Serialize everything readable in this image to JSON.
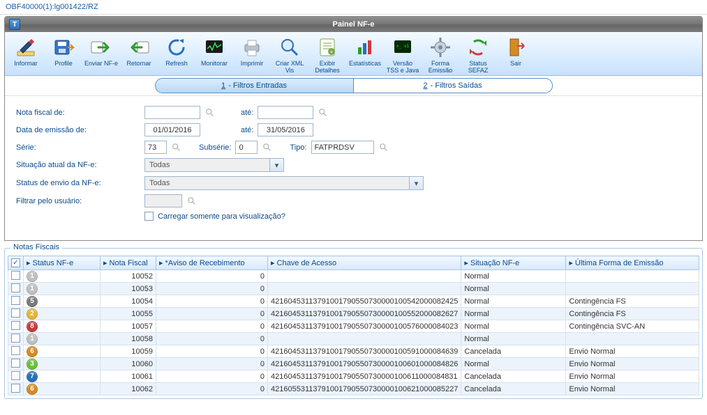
{
  "breadcrumb": "OBF40000(1):lg001422/RZ",
  "window_title": "Painel NF-e",
  "toolbar": [
    {
      "id": "informar",
      "label": "Informar",
      "svg": "pen"
    },
    {
      "id": "profile",
      "label": "Profile",
      "svg": "disk-arrow"
    },
    {
      "id": "enviar",
      "label": "Enviar NF-e",
      "svg": "arrow-right-green"
    },
    {
      "id": "retornar",
      "label": "Retornar",
      "svg": "arrow-left-green"
    },
    {
      "id": "refresh",
      "label": "Refresh",
      "svg": "refresh-blue"
    },
    {
      "id": "monitorar",
      "label": "Monitorar",
      "svg": "monitor"
    },
    {
      "id": "imprimir",
      "label": "Imprimir",
      "svg": "printer"
    },
    {
      "id": "criarxml",
      "label": "Criar XML\nVis",
      "svg": "magnifier"
    },
    {
      "id": "exibir",
      "label": "Exibir\nDetalhes",
      "svg": "detail"
    },
    {
      "id": "estat",
      "label": "Estatísticas",
      "svg": "bars"
    },
    {
      "id": "versao",
      "label": "Versão\nTSS e Java",
      "svg": "terminal"
    },
    {
      "id": "forma",
      "label": "Forma\nEmissão",
      "svg": "gear"
    },
    {
      "id": "status",
      "label": "Status\nSEFAZ",
      "svg": "recycle"
    },
    {
      "id": "sair",
      "label": "Sair",
      "svg": "door"
    }
  ],
  "tabs": {
    "t1": "1",
    "t1_label": " - Filtros Entradas",
    "t2": "2",
    "t2_label": " - Filtros Saídas"
  },
  "filters": {
    "nota_de_label": "Nota fiscal de:",
    "ate_label": "até:",
    "data_label": "Data de emissão de:",
    "serie_label": "Série:",
    "subserie_label": "Subsérie:",
    "tipo_label": "Tipo:",
    "situacao_label": "Situação atual da NF-e:",
    "status_envio_label": "Status de envio da NF-e:",
    "filtrar_user_label": "Filtrar pelo usuário:",
    "data_de": "01/01/2016",
    "data_ate": "31/05/2016",
    "serie": "73",
    "subserie": "0",
    "tipo": "FATPRDSV",
    "combo_todas": "Todas",
    "check_label": "Carregar somente para visualização?"
  },
  "group_title": "Notas Fiscais",
  "columns": {
    "c1": "Status NF-e",
    "c2": "Nota Fiscal",
    "c3": "*Aviso de Recebimento",
    "c4": "Chave de Acesso",
    "c5": "Situação NF-e",
    "c6": "Última Forma de Emissão"
  },
  "header_checked": true,
  "rows": [
    {
      "badge_text": "1",
      "badge_color": "#c0c0c0",
      "nota": "10052",
      "aviso": "0",
      "chave": "",
      "situacao": "Normal",
      "forma": ""
    },
    {
      "badge_text": "1",
      "badge_color": "#c0c0c0",
      "nota": "10053",
      "aviso": "0",
      "chave": "",
      "situacao": "Normal",
      "forma": ""
    },
    {
      "badge_text": "5",
      "badge_color": "#7a7a7a",
      "nota": "10054",
      "aviso": "0",
      "chave": "42160453113791001790550730000100542000082425",
      "situacao": "Normal",
      "forma": "Contingência FS"
    },
    {
      "badge_text": "2",
      "badge_color": "#e0b63a",
      "nota": "10055",
      "aviso": "0",
      "chave": "42160453113791001790550730000100552000082627",
      "situacao": "Normal",
      "forma": "Contingência FS"
    },
    {
      "badge_text": "8",
      "badge_color": "#c83b3b",
      "nota": "10057",
      "aviso": "0",
      "chave": "42160453113791001790550730000100576000084023",
      "situacao": "Normal",
      "forma": "Contingência SVC-AN"
    },
    {
      "badge_text": "1",
      "badge_color": "#c0c0c0",
      "nota": "10058",
      "aviso": "0",
      "chave": "",
      "situacao": "Normal",
      "forma": ""
    },
    {
      "badge_text": "6",
      "badge_color": "#d68a22",
      "nota": "10059",
      "aviso": "0",
      "chave": "42160453113791001790550730000100591000084639",
      "situacao": "Cancelada",
      "forma": "Envio Normal"
    },
    {
      "badge_text": "3",
      "badge_color": "#6bbf3a",
      "nota": "10060",
      "aviso": "0",
      "chave": "42160453113791001790550730000100601000084826",
      "situacao": "Normal",
      "forma": "Envio Normal"
    },
    {
      "badge_text": "7",
      "badge_color": "#2b6fb8",
      "nota": "10061",
      "aviso": "0",
      "chave": "42160453113791001790550730000100611000084831",
      "situacao": "Cancelada",
      "forma": "Envio Normal"
    },
    {
      "badge_text": "6",
      "badge_color": "#d68a22",
      "nota": "10062",
      "aviso": "0",
      "chave": "42160553113791001790550730000100621000085227",
      "situacao": "Cancelada",
      "forma": "Envio Normal"
    }
  ]
}
